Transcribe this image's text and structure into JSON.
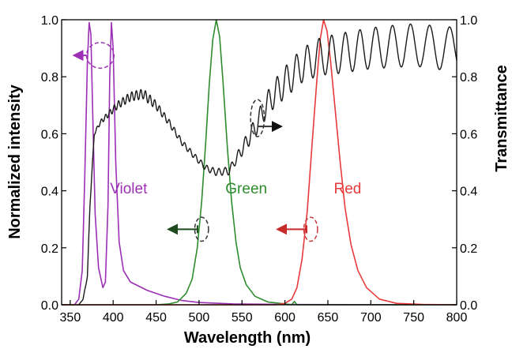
{
  "chart_data": {
    "type": "line",
    "title": "",
    "xlabel": "Wavelength (nm)",
    "ylabel": "Normalized intensity",
    "y2label": "Transmittance",
    "xlim": [
      340,
      800
    ],
    "ylim": [
      0,
      1.0
    ],
    "y2lim": [
      0,
      1.0
    ],
    "x_ticks": [
      350,
      400,
      450,
      500,
      550,
      600,
      650,
      700,
      750,
      800
    ],
    "x_tick_labels": [
      "350",
      "400",
      "450",
      "500",
      "550",
      "600",
      "650",
      "700",
      "750",
      "800"
    ],
    "y_ticks": [
      0,
      0.2,
      0.4,
      0.6,
      0.8,
      1.0
    ],
    "y_tick_labels": [
      "0.0",
      "0.2",
      "0.4",
      "0.6",
      "0.8",
      "1.0"
    ],
    "y2_tick_labels": [
      "0.0",
      "0.2",
      "0.4",
      "0.6",
      "0.8",
      "1.0"
    ],
    "grid": false,
    "series": [
      {
        "name": "Violet",
        "axis": "left",
        "color": "#9b30b5",
        "points": [
          [
            340,
            0
          ],
          [
            355,
            0
          ],
          [
            360,
            0.02
          ],
          [
            364,
            0.12
          ],
          [
            367,
            0.45
          ],
          [
            370,
            0.85
          ],
          [
            372,
            0.99
          ],
          [
            374,
            0.95
          ],
          [
            376,
            0.7
          ],
          [
            379,
            0.32
          ],
          [
            383,
            0.13
          ],
          [
            388,
            0.06
          ],
          [
            391,
            0.08
          ],
          [
            394,
            0.35
          ],
          [
            396,
            0.8
          ],
          [
            398,
            0.99
          ],
          [
            400,
            0.9
          ],
          [
            403,
            0.5
          ],
          [
            407,
            0.22
          ],
          [
            412,
            0.12
          ],
          [
            420,
            0.08
          ],
          [
            440,
            0.05
          ],
          [
            460,
            0.03
          ],
          [
            480,
            0.015
          ],
          [
            500,
            0.008
          ],
          [
            540,
            0.003
          ],
          [
            600,
            0.001
          ],
          [
            800,
            0
          ]
        ]
      },
      {
        "name": "Green",
        "axis": "left",
        "color": "#2e8b2e",
        "points": [
          [
            340,
            0
          ],
          [
            450,
            0
          ],
          [
            465,
            0.003
          ],
          [
            475,
            0.01
          ],
          [
            485,
            0.04
          ],
          [
            492,
            0.09
          ],
          [
            498,
            0.2
          ],
          [
            503,
            0.36
          ],
          [
            508,
            0.58
          ],
          [
            512,
            0.78
          ],
          [
            516,
            0.93
          ],
          [
            520,
            1.0
          ],
          [
            524,
            0.94
          ],
          [
            528,
            0.78
          ],
          [
            533,
            0.55
          ],
          [
            538,
            0.36
          ],
          [
            543,
            0.22
          ],
          [
            548,
            0.13
          ],
          [
            555,
            0.07
          ],
          [
            565,
            0.03
          ],
          [
            580,
            0.01
          ],
          [
            600,
            0.003
          ],
          [
            608,
            0.0
          ],
          [
            611,
            0.012
          ],
          [
            614,
            0.0
          ],
          [
            640,
            0
          ],
          [
            800,
            0
          ]
        ]
      },
      {
        "name": "Red",
        "axis": "left",
        "color": "#e83a3a",
        "points": [
          [
            340,
            0
          ],
          [
            590,
            0
          ],
          [
            600,
            0.005
          ],
          [
            608,
            0.02
          ],
          [
            614,
            0.06
          ],
          [
            620,
            0.16
          ],
          [
            626,
            0.33
          ],
          [
            632,
            0.58
          ],
          [
            637,
            0.78
          ],
          [
            641,
            0.93
          ],
          [
            645,
            1.0
          ],
          [
            649,
            0.96
          ],
          [
            653,
            0.86
          ],
          [
            658,
            0.7
          ],
          [
            664,
            0.51
          ],
          [
            670,
            0.34
          ],
          [
            677,
            0.21
          ],
          [
            685,
            0.12
          ],
          [
            695,
            0.06
          ],
          [
            710,
            0.02
          ],
          [
            730,
            0.005
          ],
          [
            760,
            0.001
          ],
          [
            800,
            0
          ]
        ]
      }
    ],
    "transmittance": {
      "name": "",
      "axis": "right",
      "color": "#1a1a1a",
      "envelope": [
        [
          360,
          0.0
        ],
        [
          365,
          0.02
        ],
        [
          370,
          0.1
        ],
        [
          373,
          0.35
        ],
        [
          378,
          0.6
        ],
        [
          385,
          0.64
        ],
        [
          395,
          0.67
        ],
        [
          405,
          0.7
        ],
        [
          420,
          0.73
        ],
        [
          435,
          0.74
        ],
        [
          450,
          0.7
        ],
        [
          465,
          0.64
        ],
        [
          480,
          0.57
        ],
        [
          495,
          0.52
        ],
        [
          508,
          0.48
        ],
        [
          520,
          0.465
        ],
        [
          535,
          0.47
        ],
        [
          545,
          0.52
        ],
        [
          555,
          0.57
        ],
        [
          565,
          0.62
        ],
        [
          575,
          0.68
        ],
        [
          585,
          0.73
        ],
        [
          600,
          0.78
        ],
        [
          620,
          0.84
        ],
        [
          640,
          0.87
        ],
        [
          660,
          0.88
        ],
        [
          680,
          0.89
        ],
        [
          700,
          0.9
        ],
        [
          720,
          0.905
        ],
        [
          740,
          0.91
        ],
        [
          760,
          0.91
        ],
        [
          780,
          0.9
        ],
        [
          800,
          0.9
        ]
      ],
      "ripple": [
        [
          360,
          0.0
        ],
        [
          380,
          0.006
        ],
        [
          400,
          0.012
        ],
        [
          420,
          0.016
        ],
        [
          440,
          0.018
        ],
        [
          460,
          0.012
        ],
        [
          480,
          0.01
        ],
        [
          500,
          0.01
        ],
        [
          520,
          0.012
        ],
        [
          540,
          0.015
        ],
        [
          560,
          0.03
        ],
        [
          580,
          0.045
        ],
        [
          600,
          0.055
        ],
        [
          620,
          0.06
        ],
        [
          640,
          0.065
        ],
        [
          660,
          0.07
        ],
        [
          700,
          0.072
        ],
        [
          740,
          0.075
        ],
        [
          800,
          0.075
        ]
      ],
      "period": [
        [
          360,
          5
        ],
        [
          400,
          5
        ],
        [
          450,
          5.5
        ],
        [
          500,
          6.5
        ],
        [
          550,
          8
        ],
        [
          600,
          11
        ],
        [
          650,
          15
        ],
        [
          700,
          18.5
        ],
        [
          750,
          22
        ],
        [
          800,
          24
        ]
      ]
    },
    "annotations": [
      {
        "type": "ellipse",
        "color": "#9b30b5",
        "x": 385,
        "y": 0.875,
        "rx_nm": 16,
        "ry": 0.045,
        "arrow": "left",
        "arrow_to": 355,
        "axis": "left"
      },
      {
        "type": "ellipse",
        "color": "#333333",
        "x": 568,
        "y": 0.655,
        "rx_nm": 8,
        "ry": 0.065,
        "arrow": "right",
        "arrow_to": 595,
        "axis": "right"
      },
      {
        "type": "ellipse",
        "color": "#333333",
        "x": 503,
        "y": 0.265,
        "rx_nm": 8,
        "ry": 0.042,
        "arrow": "left",
        "arrow_to": 465,
        "arrow_color": "#1f4a1f",
        "axis": "left"
      },
      {
        "type": "ellipse",
        "color": "#c83a3a",
        "x": 630,
        "y": 0.265,
        "rx_nm": 8,
        "ry": 0.042,
        "arrow": "left",
        "arrow_to": 592,
        "arrow_color": "#c82a2a",
        "axis": "left"
      }
    ],
    "series_labels": [
      {
        "text": "Violet",
        "x": 418,
        "y": 0.39,
        "color": "#9b30b5"
      },
      {
        "text": "Green",
        "x": 555,
        "y": 0.39,
        "color": "#2e8b2e"
      },
      {
        "text": "Red",
        "x": 673,
        "y": 0.39,
        "color": "#e83a3a"
      }
    ]
  }
}
